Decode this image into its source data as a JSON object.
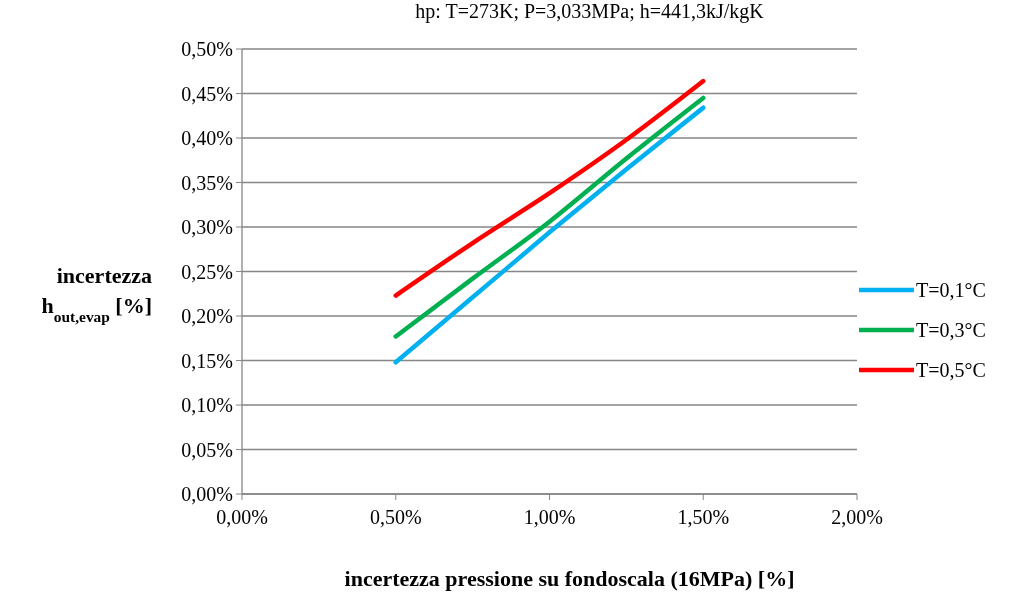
{
  "chart_data": {
    "type": "line",
    "title": "hp: T=273K; P=3,033MPa; h=441,3kJ/kgK",
    "xlabel": "incertezza pressione su fondoscala (16MPa)  [%]",
    "ylabel": "incertezza\nh$_{out,evap}$ [%]",
    "x": [
      0.5,
      0.75,
      1.0,
      1.25,
      1.5
    ],
    "series": [
      {
        "name": "T=0,1°C",
        "color": "#00b0f0",
        "values": [
          0.148,
          0.221,
          0.294,
          0.365,
          0.434
        ]
      },
      {
        "name": "T=0,3°C",
        "color": "#00b050",
        "values": [
          0.177,
          0.242,
          0.306,
          0.377,
          0.445
        ]
      },
      {
        "name": "T=0,5°C",
        "color": "#ff0000",
        "values": [
          0.223,
          0.282,
          0.338,
          0.398,
          0.464
        ]
      }
    ],
    "xlim": [
      0,
      2
    ],
    "xticks": [
      {
        "value": 0,
        "label": "0,00%"
      },
      {
        "value": 0.5,
        "label": "0,50%"
      },
      {
        "value": 1,
        "label": "1,00%"
      },
      {
        "value": 1.5,
        "label": "1,50%"
      },
      {
        "value": 2,
        "label": "2,00%"
      }
    ],
    "ylim": [
      0,
      0.5
    ],
    "yticks": [
      {
        "value": 0,
        "label": "0,00%"
      },
      {
        "value": 0.05,
        "label": "0,05%"
      },
      {
        "value": 0.1,
        "label": "0,10%"
      },
      {
        "value": 0.15,
        "label": "0,15%"
      },
      {
        "value": 0.2,
        "label": "0,20%"
      },
      {
        "value": 0.25,
        "label": "0,25%"
      },
      {
        "value": 0.3,
        "label": "0,30%"
      },
      {
        "value": 0.35,
        "label": "0,35%"
      },
      {
        "value": 0.4,
        "label": "0,40%"
      },
      {
        "value": 0.45,
        "label": "0,45%"
      },
      {
        "value": 0.5,
        "label": "0,50%"
      }
    ],
    "grid": "y",
    "legend": "right",
    "marker": "none",
    "line_style": "solid"
  }
}
